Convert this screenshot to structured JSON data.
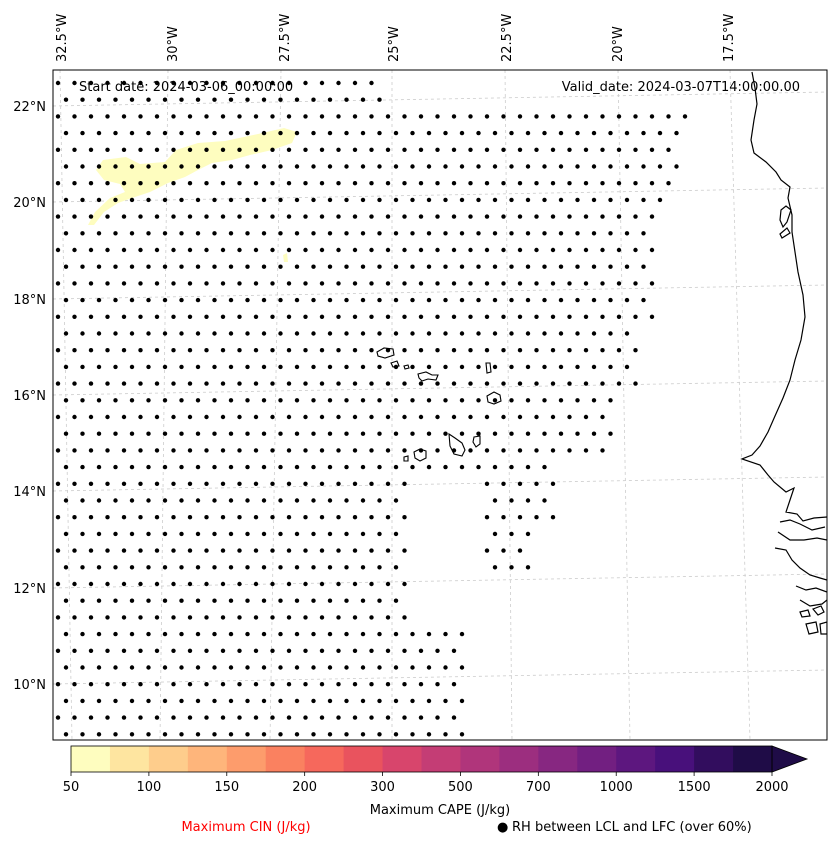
{
  "map": {
    "annotations": {
      "start_date": "Start date: 2024-03-06_00:00:00",
      "valid_date": "Valid_date: 2024-03-07T14:00:00.00"
    },
    "longitude_labels": [
      "32.5°W",
      "30°W",
      "27.5°W",
      "25°W",
      "22.5°W",
      "20°W",
      "17.5°W"
    ],
    "latitude_labels": [
      "22°N",
      "20°N",
      "18°N",
      "16°N",
      "14°N",
      "12°N",
      "10°N"
    ],
    "extent": {
      "lon_min": -33.0,
      "lon_max": -16.0,
      "lat_min": 8.8,
      "lat_max": 22.7
    },
    "gridlines": true,
    "dot_marker_meaning": "RH between LCL and LFC (over 60%)"
  },
  "colorbar": {
    "title": "Maximum CAPE (J/kg)",
    "tick_labels": [
      "50",
      "100",
      "150",
      "200",
      "300",
      "500",
      "700",
      "1000",
      "1500",
      "2000"
    ],
    "levels": [
      50,
      75,
      100,
      125,
      150,
      175,
      200,
      250,
      300,
      400,
      500,
      600,
      700,
      800,
      1000,
      1250,
      1500,
      1750,
      2000
    ],
    "colors": [
      "#fefdbf",
      "#fee5a0",
      "#fecd8c",
      "#feb57b",
      "#fd9c6c",
      "#fa8160",
      "#f6685c",
      "#e9535e",
      "#d8456c",
      "#c43d75",
      "#b0357b",
      "#9c2e7f",
      "#872781",
      "#721f81",
      "#5d177f",
      "#48107b",
      "#320d5e",
      "#1f0c47"
    ],
    "extend": "max"
  },
  "legend": {
    "cin_label": "Maximum CIN (J/kg)",
    "cin_color": "#ff0000",
    "rh_label": "RH between LCL and LFC (over 60%)",
    "rh_symbol": "●"
  }
}
